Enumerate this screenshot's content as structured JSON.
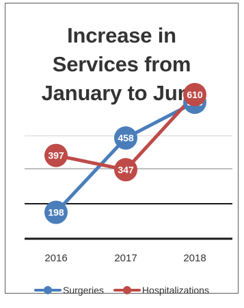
{
  "chart_data": {
    "type": "line",
    "title": "Increase in\nServices from\nJanuary to June",
    "categories": [
      "2016",
      "2017",
      "2018"
    ],
    "series": [
      {
        "name": "Surgeries",
        "values": [
          198,
          458,
          583
        ],
        "color": "#4A7EBB"
      },
      {
        "name": "Hospitalizations",
        "values": [
          397,
          347,
          610
        ],
        "color": "#BE4B48"
      }
    ],
    "data_labels": true,
    "legend_position": "bottom",
    "gridlines": true
  }
}
